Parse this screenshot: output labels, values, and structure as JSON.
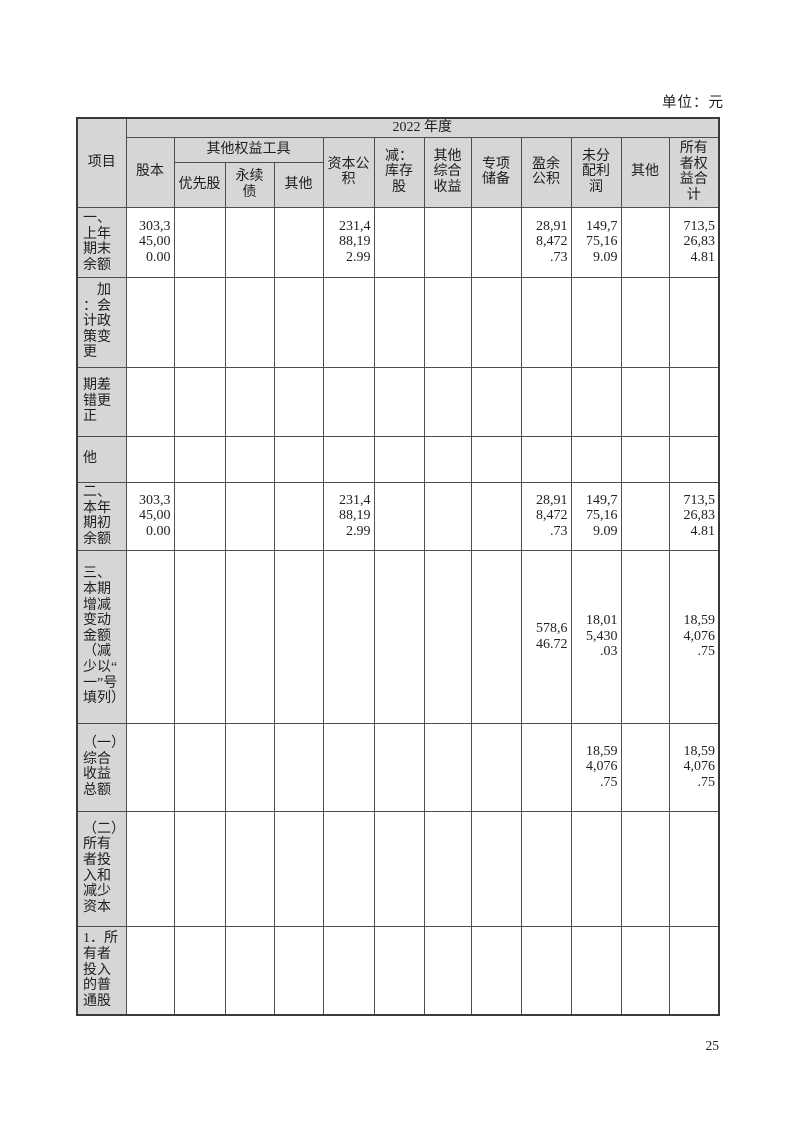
{
  "page": {
    "unit_label": "单位：元",
    "page_number": "25"
  },
  "table": {
    "corner_header": "项目",
    "year_header": "2022 年度",
    "group_header": "其他权益工具",
    "columns": [
      "股本",
      "优先股",
      "永续债",
      "其他",
      "资本公积",
      "减：库存股",
      "其他综合收益",
      "专项储备",
      "盈余公积",
      "未分配利润",
      "其他",
      "所有者权益合计"
    ],
    "rows": [
      {
        "label": "一、上年期末余额",
        "values": [
          "303,345,000.00",
          "",
          "",
          "",
          "231,488,192.99",
          "",
          "",
          "",
          "28,918,472.73",
          "149,775,169.09",
          "",
          "713,526,834.81"
        ]
      },
      {
        "label": "　加：会计政策变更",
        "values": [
          "",
          "",
          "",
          "",
          "",
          "",
          "",
          "",
          "",
          "",
          "",
          ""
        ]
      },
      {
        "label": "期差错更正",
        "values": [
          "",
          "",
          "",
          "",
          "",
          "",
          "",
          "",
          "",
          "",
          "",
          ""
        ]
      },
      {
        "label": "他",
        "values": [
          "",
          "",
          "",
          "",
          "",
          "",
          "",
          "",
          "",
          "",
          "",
          ""
        ]
      },
      {
        "label": "二、本年期初余额",
        "values": [
          "303,345,000.00",
          "",
          "",
          "",
          "231,488,192.99",
          "",
          "",
          "",
          "28,918,472.73",
          "149,775,169.09",
          "",
          "713,526,834.81"
        ]
      },
      {
        "label": "三、本期增减变动金额（减少以“一”号填列）",
        "values": [
          "",
          "",
          "",
          "",
          "",
          "",
          "",
          "",
          "578,646.72",
          "18,015,430.03",
          "",
          "18,594,076.75"
        ]
      },
      {
        "label": "（一）综合收益总额",
        "values": [
          "",
          "",
          "",
          "",
          "",
          "",
          "",
          "",
          "",
          "18,594,076.75",
          "",
          "18,594,076.75"
        ]
      },
      {
        "label": "（二）所有者投入和减少资本",
        "values": [
          "",
          "",
          "",
          "",
          "",
          "",
          "",
          "",
          "",
          "",
          "",
          ""
        ]
      },
      {
        "label": "1．所有者投入的普通股",
        "values": [
          "",
          "",
          "",
          "",
          "",
          "",
          "",
          "",
          "",
          "",
          "",
          ""
        ]
      }
    ]
  }
}
